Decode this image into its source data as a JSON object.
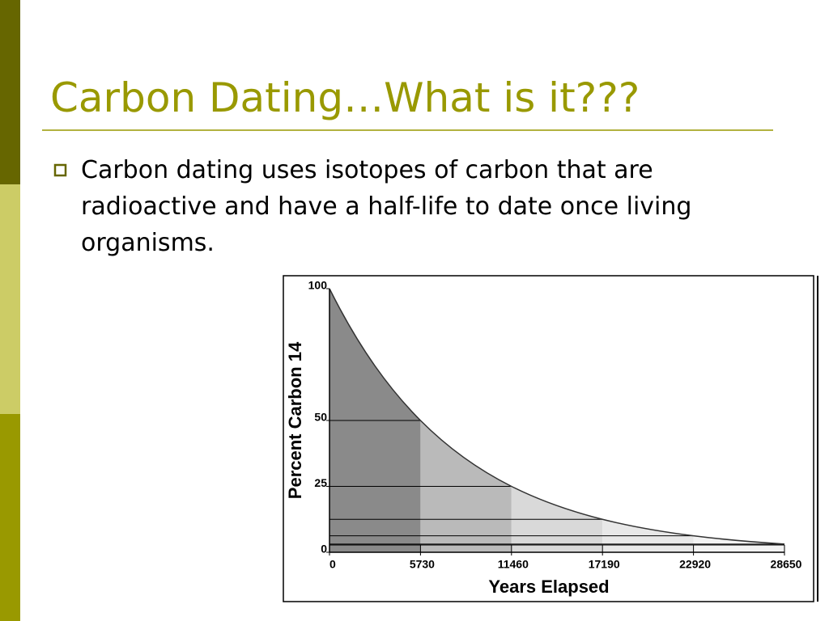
{
  "title": "Carbon Dating…What is it???",
  "bullets": [
    "Carbon dating uses isotopes of carbon that are radioactive and have a half-life to date once living organisms."
  ],
  "chart_data": {
    "type": "area",
    "x": [
      0,
      5730,
      11460,
      17190,
      22920,
      28650
    ],
    "values": [
      100,
      50,
      25,
      12.5,
      6.25,
      3.125
    ],
    "colors": [
      "#8a8a8a",
      "#bababa",
      "#d9d9d9",
      "#e8e8e8",
      "#f3f3f3"
    ],
    "xlim": [
      0,
      28650
    ],
    "ylim": [
      0,
      100
    ],
    "xticks": [
      0,
      5730,
      11460,
      17190,
      22920,
      28650
    ],
    "yticks": [
      0,
      25,
      50,
      100
    ],
    "xlabel": "Years Elapsed",
    "ylabel": "Percent Carbon 14"
  }
}
